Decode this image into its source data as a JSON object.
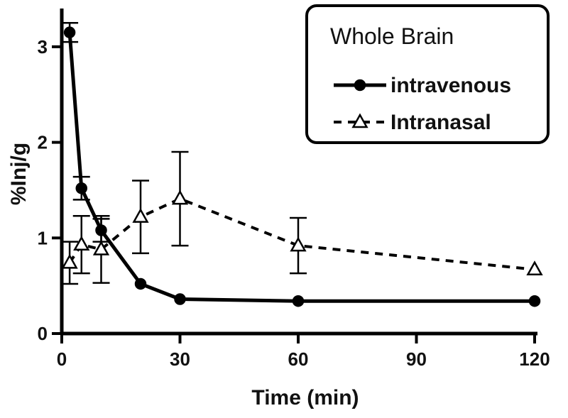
{
  "chart_data": {
    "type": "line",
    "title": "",
    "xlabel": "Time (min)",
    "ylabel": "%Inj/g",
    "xlim": [
      0,
      120
    ],
    "ylim": [
      0,
      3.4
    ],
    "xticks": [
      0,
      30,
      60,
      90,
      120
    ],
    "yticks": [
      0,
      1,
      2,
      3
    ],
    "grid": false,
    "legend": {
      "title": "Whole Brain",
      "placement": "top-right"
    },
    "series": [
      {
        "name": "intravenous",
        "style": "solid",
        "marker": "filled-circle",
        "color": "#000000",
        "x": [
          2,
          5,
          10,
          20,
          30,
          60,
          120
        ],
        "y": [
          3.15,
          1.52,
          1.08,
          0.52,
          0.36,
          0.34,
          0.34
        ],
        "error": [
          0.1,
          0.12,
          0.12,
          0.0,
          0.0,
          0.0,
          0.0
        ]
      },
      {
        "name": "Intranasal",
        "style": "dashed",
        "marker": "open-triangle",
        "color": "#000000",
        "x": [
          2,
          5,
          10,
          20,
          30,
          60,
          120
        ],
        "y": [
          0.74,
          0.93,
          0.88,
          1.22,
          1.41,
          0.92,
          0.67
        ],
        "error": [
          0.22,
          0.3,
          0.35,
          0.38,
          0.49,
          0.29,
          0.0
        ]
      }
    ]
  }
}
